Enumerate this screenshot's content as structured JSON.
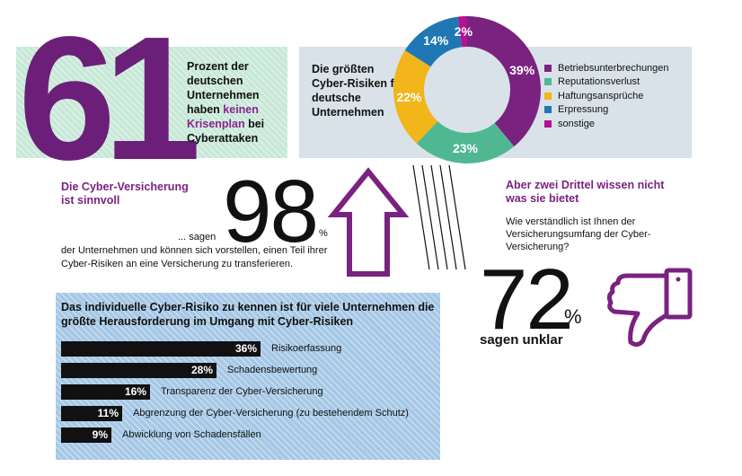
{
  "stat61": {
    "number": "61",
    "text_before": "Prozent der deutschen Unternehmen haben ",
    "highlight": "keinen Krisenplan",
    "text_after": " bei Cyberattaken"
  },
  "donut": {
    "title": "Die größten Cyber-Risiken für deutsche Unternehmen"
  },
  "insurance": {
    "heading_line1": "Die Cyber-Versicherung",
    "heading_line2": "ist sinnvoll",
    "number": "98",
    "percent_sign": "%",
    "sagen": "... sagen",
    "description": "der Unternehmen und können sich vorstellen, einen Teil ihrer Cyber-Risiken an eine Versicherung zu transferieren."
  },
  "understanding": {
    "heading_line1": "Aber zwei Drittel wissen nicht",
    "heading_line2": "was sie bietet",
    "question": "Wie verständlich ist Ihnen der Versicherungsumfang der Cyber-Versicherung?",
    "number": "72",
    "percent_sign": "%",
    "sagen": "sagen unklar"
  },
  "colors": {
    "purple": "#7a2280",
    "teal": "#4fb893",
    "yellow": "#f2b51a",
    "blue": "#1f78b4",
    "magenta": "#b5128f"
  },
  "chart_data": [
    {
      "type": "pie",
      "title": "Die größten Cyber-Risiken für deutsche Unternehmen",
      "unit": "%",
      "categories": [
        "Betriebsunterbrechungen",
        "Reputationsverlust",
        "Haftungsansprüche",
        "Erpressung",
        "sonstige"
      ],
      "values": [
        39,
        23,
        22,
        14,
        2
      ],
      "labels": [
        "39%",
        "23%",
        "22%",
        "14%",
        "2%"
      ],
      "colors": [
        "#7a2280",
        "#4fb893",
        "#f2b51a",
        "#1f78b4",
        "#b5128f"
      ],
      "legend": "right"
    },
    {
      "type": "bar",
      "orientation": "horizontal",
      "title": "Das individuelle Cyber-Risiko zu kennen ist für viele Unternehmen die größte Herausforderung im Umgang mit Cyber-Risiken",
      "categories": [
        "Risikoerfassung",
        "Schadensbewertung",
        "Transparenz der Cyber-Versicherung",
        "Abgrenzung der Cyber-Versicherung (zu bestehendem Schutz)",
        "Abwicklung von Schadensfällen"
      ],
      "values": [
        36,
        28,
        16,
        11,
        9
      ],
      "labels": [
        "36%",
        "28%",
        "16%",
        "11%",
        "9%"
      ],
      "xlim": [
        0,
        36
      ]
    }
  ]
}
